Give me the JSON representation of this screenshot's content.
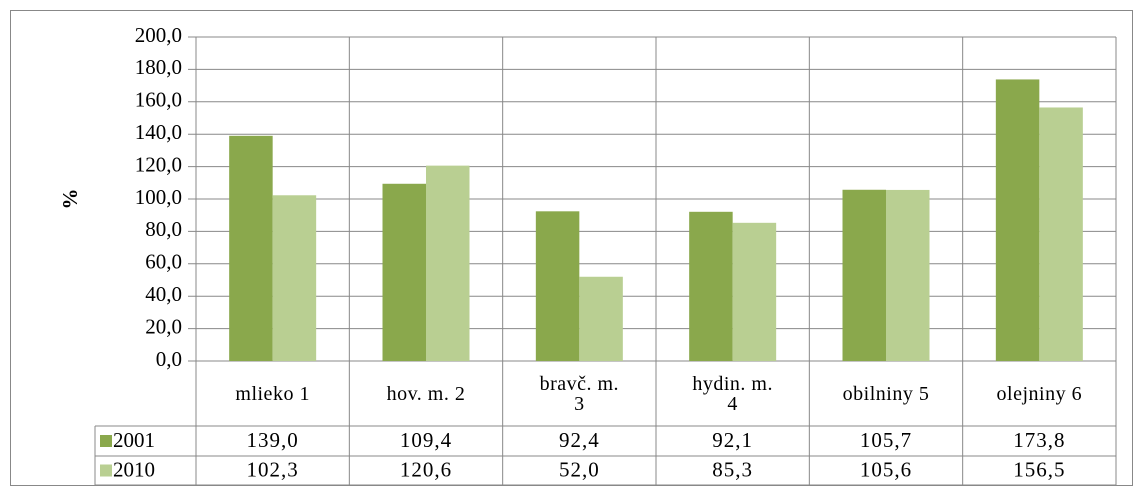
{
  "chart_data": {
    "type": "bar",
    "y_label": "%",
    "categories": [
      "mlieko 1",
      "hov. m. 2",
      "bravč. m.\n3",
      "hydin. m.\n4",
      "obilniny 5",
      "olejniny 6"
    ],
    "series": [
      {
        "name": "2001",
        "color": "#8aa84c",
        "values": [
          139.0,
          109.4,
          92.4,
          92.1,
          105.7,
          173.8
        ],
        "value_labels": [
          "139,0",
          "109,4",
          "92,4",
          "92,1",
          "105,7",
          "173,8"
        ]
      },
      {
        "name": "2010",
        "color": "#b9cf92",
        "values": [
          102.3,
          120.6,
          52.0,
          85.3,
          105.6,
          156.5
        ],
        "value_labels": [
          "102,3",
          "120,6",
          "52,0",
          "85,3",
          "105,6",
          "156,5"
        ]
      }
    ],
    "ylim": [
      0,
      200
    ],
    "yticks": [
      {
        "value": 0,
        "label": "0,0"
      },
      {
        "value": 20,
        "label": "20,0"
      },
      {
        "value": 40,
        "label": "40,0"
      },
      {
        "value": 60,
        "label": "60,0"
      },
      {
        "value": 80,
        "label": "80,0"
      },
      {
        "value": 100,
        "label": "100,0"
      },
      {
        "value": 120,
        "label": "120,0"
      },
      {
        "value": 140,
        "label": "140,0"
      },
      {
        "value": 160,
        "label": "160,0"
      },
      {
        "value": 180,
        "label": "180,0"
      },
      {
        "value": 200,
        "label": "200,0"
      }
    ],
    "grid": true
  }
}
